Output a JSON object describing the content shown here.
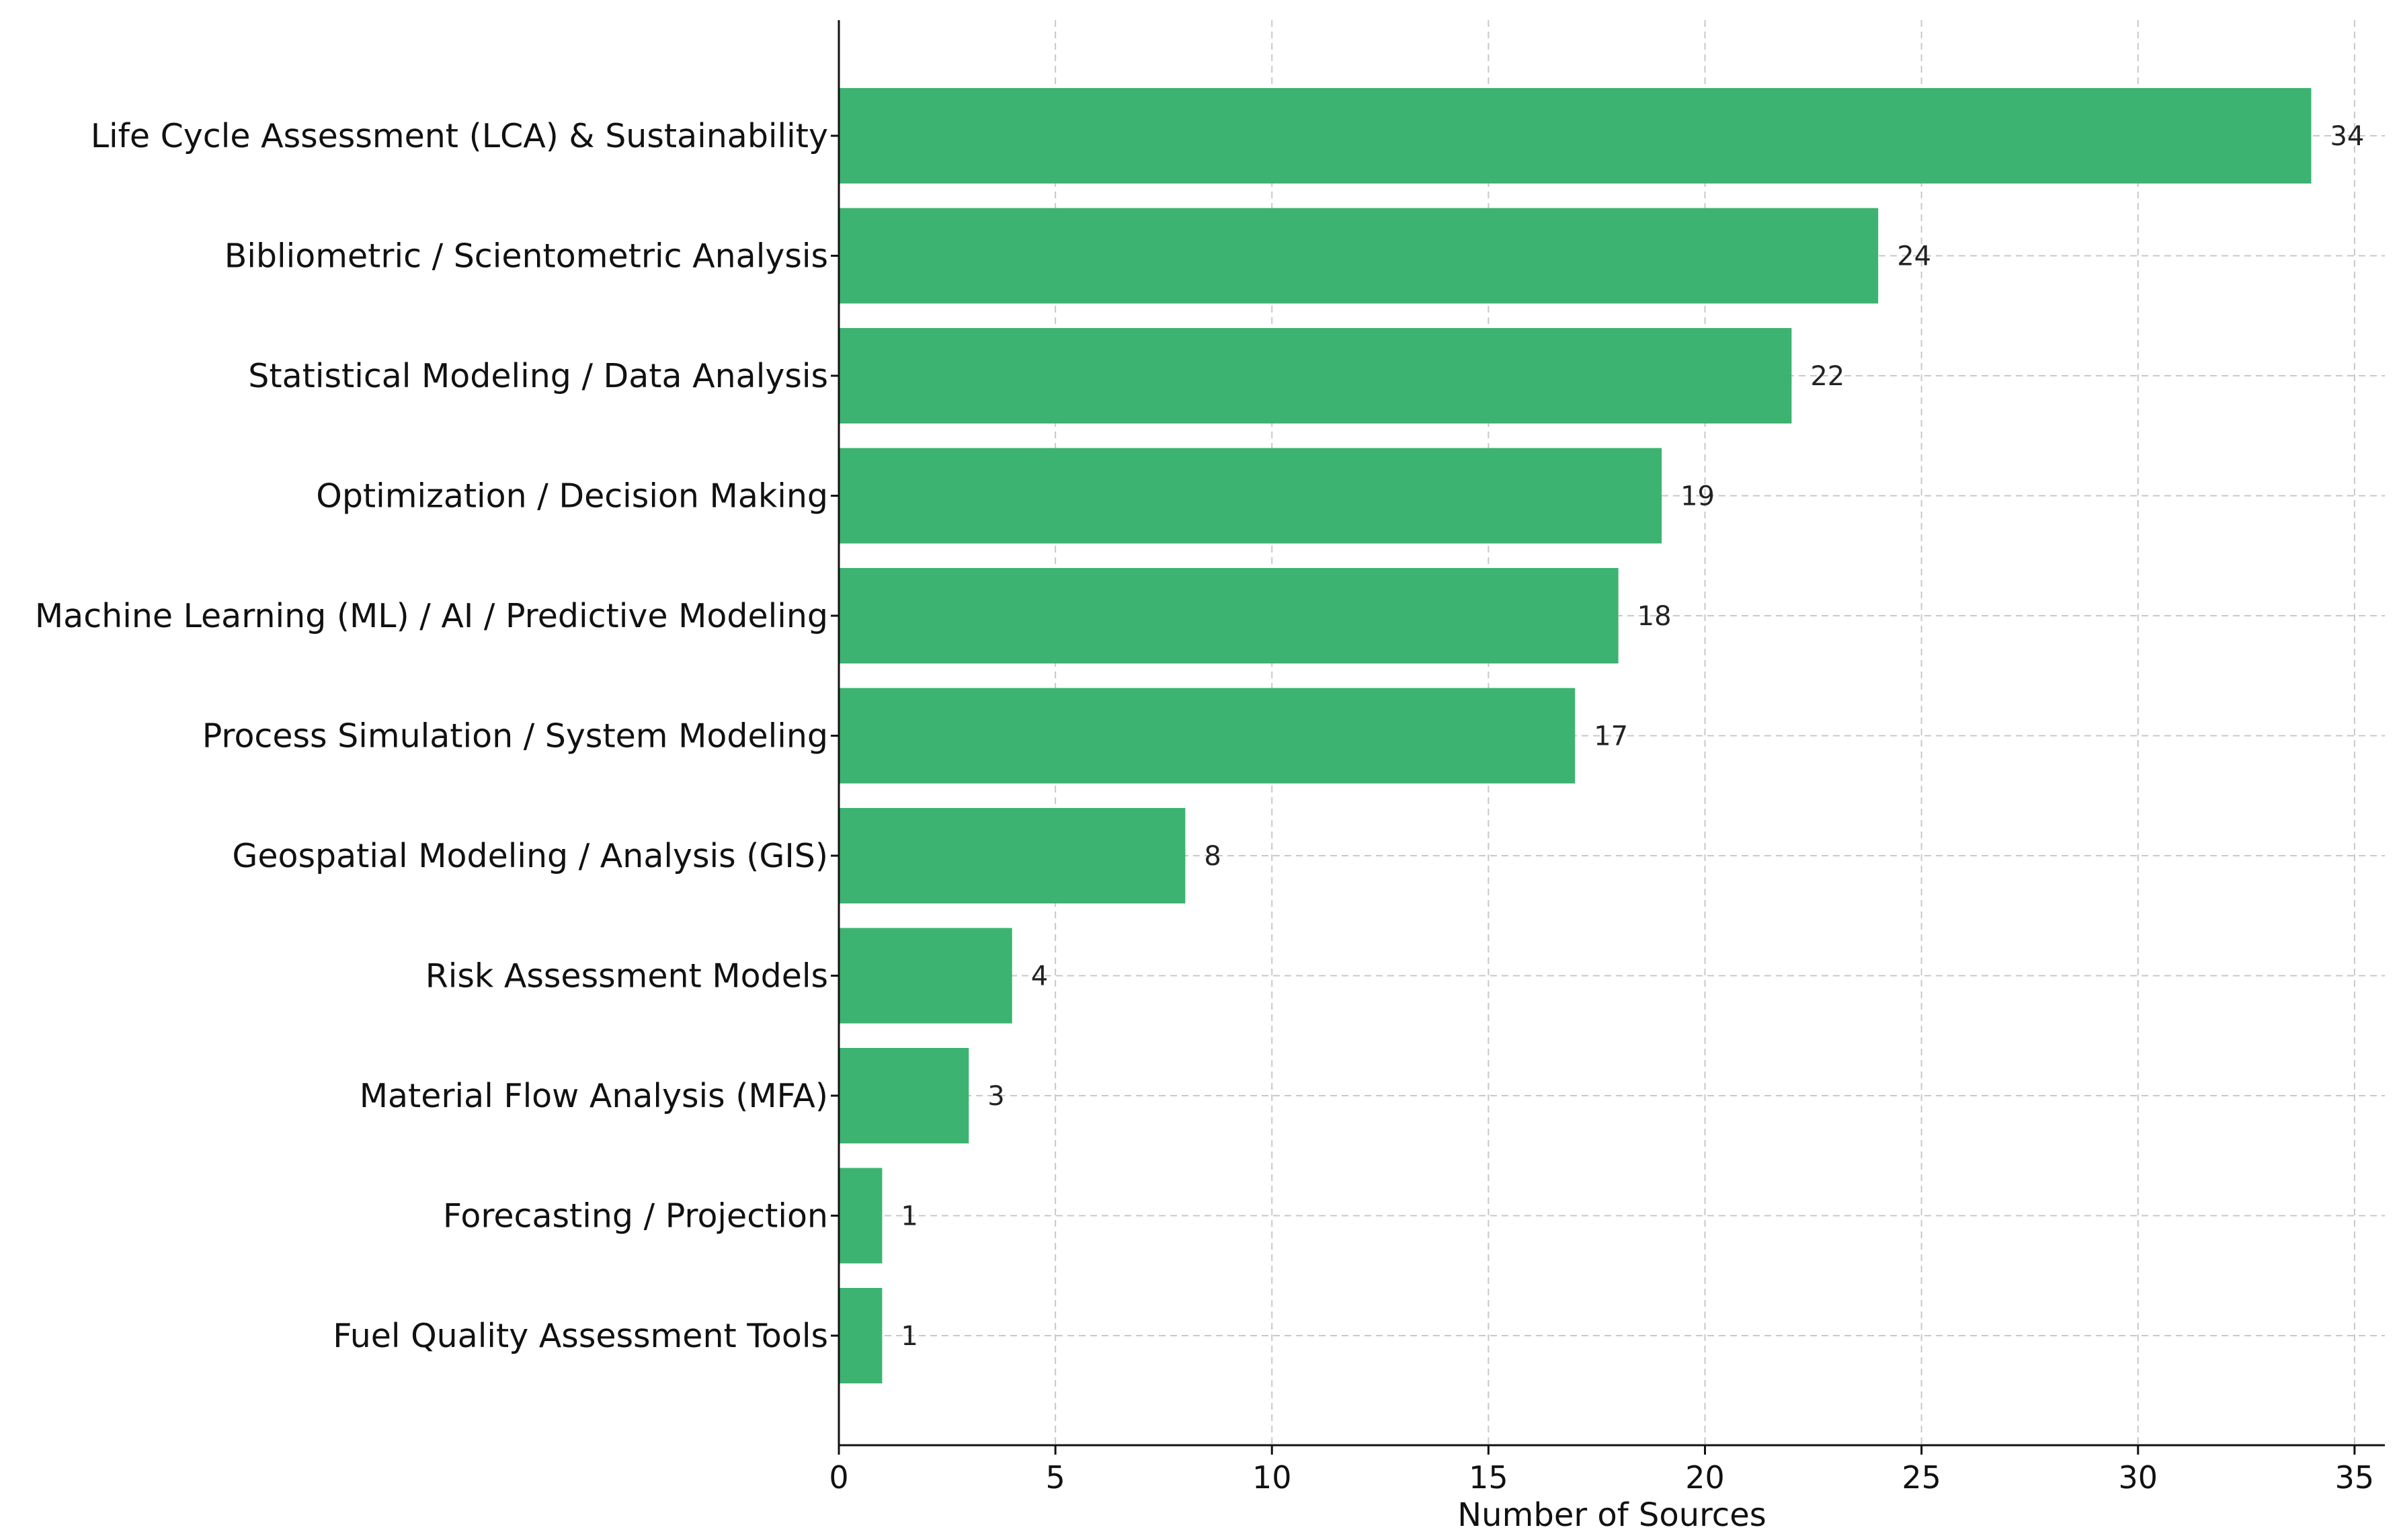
{
  "chart_data": {
    "type": "bar",
    "orientation": "horizontal",
    "categories": [
      "Life Cycle Assessment (LCA) & Sustainability",
      "Bibliometric / Scientometric Analysis",
      "Statistical Modeling / Data Analysis",
      "Optimization / Decision Making",
      "Machine Learning (ML) / AI / Predictive Modeling",
      "Process Simulation / System Modeling",
      "Geospatial Modeling / Analysis (GIS)",
      "Risk Assessment Models",
      "Material Flow Analysis (MFA)",
      "Forecasting / Projection",
      "Fuel Quality Assessment Tools"
    ],
    "values": [
      34,
      24,
      22,
      19,
      18,
      17,
      8,
      4,
      3,
      1,
      1
    ],
    "data_labels": [
      "34",
      "24",
      "22",
      "19",
      "18",
      "17",
      "8",
      "4",
      "3",
      "1",
      "1"
    ],
    "xlabel": "Number of Sources",
    "ylabel": "",
    "title": "",
    "xlim": [
      0,
      35.7
    ],
    "x_ticks": [
      0,
      5,
      10,
      15,
      20,
      25,
      30,
      35
    ],
    "x_tick_labels": [
      "0",
      "5",
      "10",
      "15",
      "20",
      "25",
      "30",
      "35"
    ],
    "grid": true,
    "legend": "none",
    "bar_color": "#3cb371"
  }
}
